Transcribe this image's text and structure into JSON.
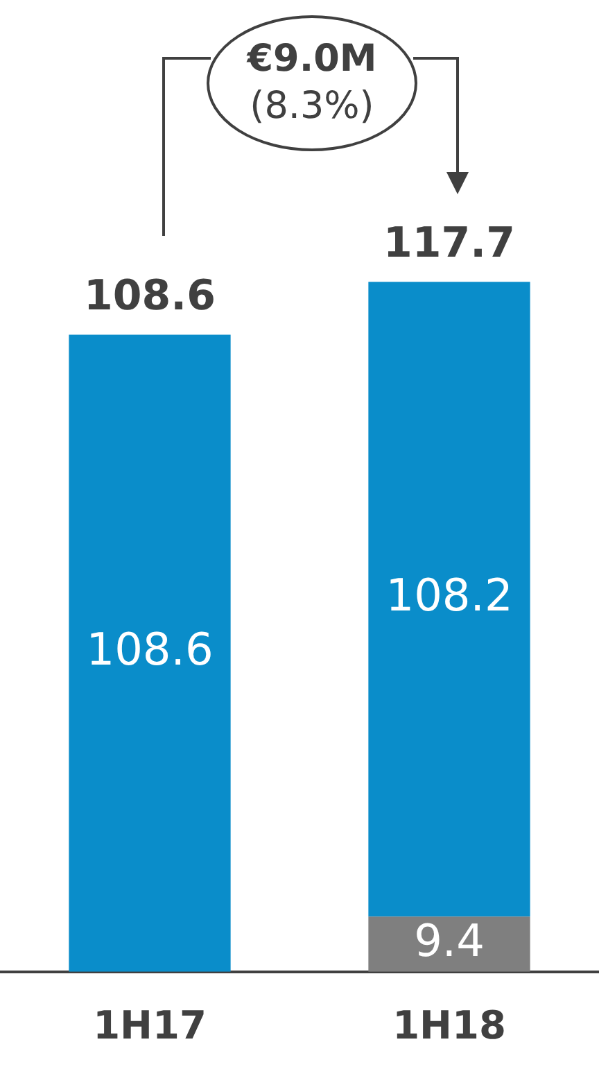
{
  "chart_data": {
    "type": "bar",
    "stacked": true,
    "categories": [
      "1H17",
      "1H18"
    ],
    "series": [
      {
        "color": "#7f7f7f",
        "values": [
          null,
          9.4
        ]
      },
      {
        "color": "#0a8dca",
        "values": [
          108.6,
          108.2
        ]
      }
    ],
    "tick_labels": "x",
    "grid": false,
    "legend": false,
    "data_labels": true,
    "totals": [
      "108.6",
      "117.7"
    ],
    "annotations": [
      "€9.0M",
      "(8.3%)"
    ]
  }
}
